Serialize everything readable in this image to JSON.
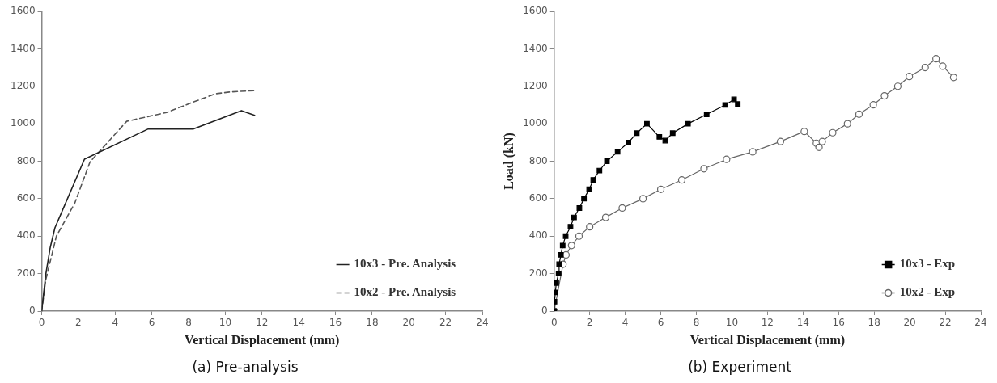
{
  "chart_data": [
    {
      "type": "line",
      "title": "(a) Pre-analysis",
      "xlabel": "Vertical Displacement (mm)",
      "xlim": [
        0,
        24
      ],
      "xticks": [
        0,
        2,
        4,
        6,
        8,
        10,
        12,
        14,
        16,
        18,
        20,
        22,
        24
      ],
      "ylim": [
        0,
        1600
      ],
      "yticks": [
        0,
        200,
        400,
        600,
        800,
        1000,
        1200,
        1400,
        1600
      ],
      "grid": false,
      "legend": "bottom right",
      "marker": "none",
      "series": [
        {
          "name": "10x3 - Pre. Analysis",
          "color": "#222222",
          "line_style": "solid",
          "x": [
            0,
            0.22,
            0.47,
            0.72,
            2.33,
            5.8,
            8.27,
            10.88,
            11.6
          ],
          "values": [
            0,
            195,
            342,
            444,
            811,
            972,
            972,
            1070,
            1045
          ]
        },
        {
          "name": "10x2 - Pre. Analysis",
          "color": "#555555",
          "line_style": "dashed",
          "x": [
            0,
            0.22,
            0.8,
            1.8,
            2.63,
            4.63,
            6.8,
            8.13,
            9.47,
            10.3,
            11.6
          ],
          "values": [
            0,
            166,
            400,
            576,
            796,
            1013,
            1060,
            1111,
            1160,
            1170,
            1177
          ]
        }
      ]
    },
    {
      "type": "line",
      "title": "(b) Experiment",
      "xlabel": "Vertical Displacement (mm)",
      "ylabel": "Load (kN)",
      "xlim": [
        0,
        24
      ],
      "xticks": [
        0,
        2,
        4,
        6,
        8,
        10,
        12,
        14,
        16,
        18,
        20,
        22,
        24
      ],
      "ylim": [
        0,
        1600
      ],
      "yticks": [
        0,
        200,
        400,
        600,
        800,
        1000,
        1200,
        1400,
        1600
      ],
      "grid": false,
      "legend": "bottom right",
      "line_style": "solid",
      "series": [
        {
          "name": "10x3 - Exp",
          "color": "#000000",
          "marker": "square",
          "x": [
            0,
            0.02,
            0.07,
            0.12,
            0.25,
            0.28,
            0.38,
            0.48,
            0.65,
            0.92,
            1.12,
            1.42,
            1.68,
            1.97,
            2.2,
            2.55,
            2.97,
            3.57,
            4.18,
            4.65,
            5.22,
            5.92,
            6.25,
            6.67,
            7.53,
            8.58,
            9.62,
            10.12,
            10.33
          ],
          "values": [
            0,
            50,
            100,
            150,
            200,
            250,
            300,
            350,
            400,
            450,
            500,
            550,
            600,
            650,
            700,
            750,
            800,
            850,
            900,
            950,
            1000,
            930,
            910,
            950,
            1000,
            1050,
            1100,
            1130,
            1105
          ]
        },
        {
          "name": "10x2 - Exp",
          "color": "#666666",
          "marker": "circle",
          "x": [
            0,
            0.5,
            0.67,
            0.98,
            1.4,
            2.0,
            2.9,
            3.83,
            5.0,
            6.0,
            7.18,
            8.43,
            9.7,
            11.17,
            12.73,
            14.07,
            14.75,
            14.9,
            15.08,
            15.67,
            16.5,
            17.15,
            17.95,
            18.58,
            19.33,
            19.98,
            20.87,
            21.48,
            21.86,
            22.47
          ],
          "values": [
            0,
            250,
            300,
            350,
            400,
            450,
            500,
            550,
            600,
            650,
            700,
            760,
            810,
            850,
            905,
            959,
            896,
            874,
            905,
            952,
            1000,
            1051,
            1101,
            1149,
            1200,
            1252,
            1300,
            1347,
            1307,
            1247
          ]
        }
      ]
    }
  ]
}
